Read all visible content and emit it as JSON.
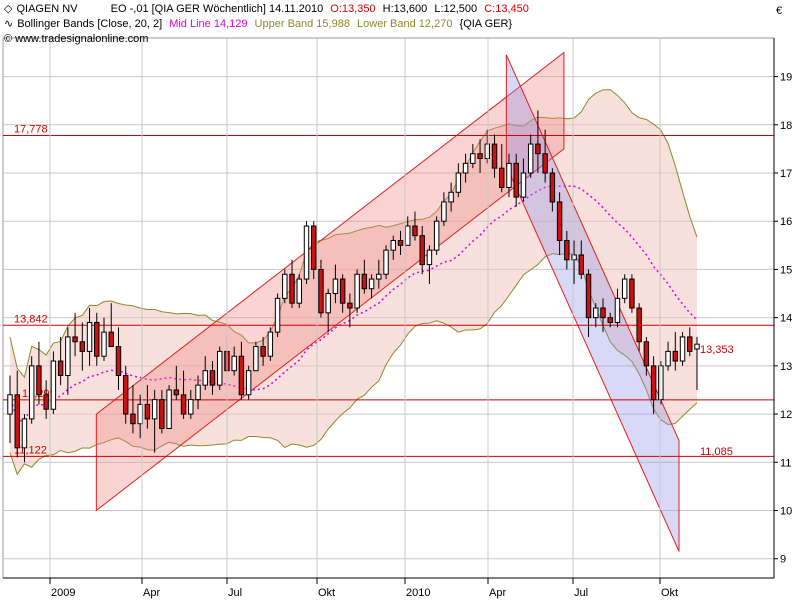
{
  "header": {
    "symbol": "QIAGEN NV",
    "instrument": "EO -,01 [QIA GER  Wöchentlich] 14.11.2010",
    "open": "O:13,350",
    "high": "H:13,600",
    "low": "L:12,500",
    "close": "C:13,450",
    "indicator": "Bollinger Bands [Close, 20, 2]",
    "mid": "Mid Line 14,129",
    "upper": "Upper Band 15,988",
    "lower": "Lower Band 12,270",
    "indicator_source": "{QIA GER}",
    "source": "© www.tradesignalonline.com"
  },
  "colors": {
    "up": "#ffffff",
    "down": "#cc1111",
    "level_line": "#d00000",
    "band_fill": "#f2c6c0",
    "band_line": "#8a8a2a",
    "mid_line": "#e000e0",
    "up_channel": "#f08080",
    "down_channel": "#9090e8"
  },
  "chart_data": {
    "type": "candlestick",
    "title": "QIAGEN NV",
    "currency_label": "€",
    "y_ticks": [
      9,
      10,
      11,
      12,
      13,
      14,
      15,
      16,
      17,
      18,
      19
    ],
    "ylim": [
      8.6,
      19.8
    ],
    "x_axis_labels": [
      {
        "label": "2009",
        "date": "2009-01"
      },
      {
        "label": "Apr",
        "date": "2009-04"
      },
      {
        "label": "Jul",
        "date": "2009-07"
      },
      {
        "label": "Okt",
        "date": "2009-10"
      },
      {
        "label": "2010",
        "date": "2010-01"
      },
      {
        "label": "Apr",
        "date": "2010-04"
      },
      {
        "label": "Jul",
        "date": "2010-07"
      },
      {
        "label": "Okt",
        "date": "2010-10"
      },
      {
        "label": "Okt",
        "date": "2010-11"
      }
    ],
    "horizontal_levels": [
      {
        "value": 17.778,
        "label": "17,778"
      },
      {
        "value": 13.842,
        "label": "13,842"
      },
      {
        "value": 12.295,
        "label": "12,295"
      },
      {
        "value": 11.122,
        "label": "11,122"
      },
      {
        "value": 11.085,
        "label": "11,085"
      }
    ],
    "last_price_label": "13,353",
    "candles": [
      [
        12.0,
        12.8,
        11.4,
        12.4
      ],
      [
        12.4,
        12.9,
        11.1,
        11.3
      ],
      [
        11.3,
        12.0,
        11.0,
        11.9
      ],
      [
        11.9,
        13.2,
        11.8,
        13.0
      ],
      [
        13.0,
        13.5,
        12.2,
        12.4
      ],
      [
        12.4,
        12.7,
        11.9,
        12.1
      ],
      [
        12.1,
        13.3,
        12.0,
        13.1
      ],
      [
        13.1,
        13.6,
        12.6,
        12.8
      ],
      [
        12.8,
        13.8,
        12.4,
        13.6
      ],
      [
        13.6,
        14.1,
        13.2,
        13.5
      ],
      [
        13.5,
        13.9,
        12.9,
        13.3
      ],
      [
        13.3,
        14.2,
        13.0,
        13.9
      ],
      [
        13.9,
        14.1,
        13.0,
        13.2
      ],
      [
        13.2,
        14.0,
        13.1,
        13.7
      ],
      [
        13.7,
        14.3,
        13.5,
        13.4
      ],
      [
        13.4,
        13.8,
        12.5,
        12.8
      ],
      [
        12.8,
        13.0,
        11.8,
        12.0
      ],
      [
        12.0,
        12.6,
        11.6,
        11.8
      ],
      [
        11.8,
        12.4,
        11.5,
        12.2
      ],
      [
        12.2,
        12.6,
        11.7,
        11.9
      ],
      [
        11.9,
        12.5,
        11.2,
        12.3
      ],
      [
        12.3,
        12.5,
        11.6,
        11.7
      ],
      [
        11.7,
        12.6,
        11.7,
        12.5
      ],
      [
        12.5,
        13.0,
        12.3,
        12.4
      ],
      [
        12.4,
        12.9,
        11.9,
        12.0
      ],
      [
        12.0,
        12.5,
        11.9,
        12.3
      ],
      [
        12.3,
        12.8,
        12.1,
        12.6
      ],
      [
        12.6,
        13.2,
        12.5,
        12.9
      ],
      [
        12.9,
        13.1,
        12.4,
        12.6
      ],
      [
        12.6,
        13.4,
        12.5,
        13.3
      ],
      [
        13.3,
        13.6,
        12.8,
        12.9
      ],
      [
        12.9,
        13.4,
        12.8,
        13.2
      ],
      [
        13.2,
        13.5,
        12.3,
        12.4
      ],
      [
        12.4,
        13.0,
        12.3,
        12.9
      ],
      [
        12.9,
        13.5,
        12.9,
        13.4
      ],
      [
        13.4,
        13.6,
        13.0,
        13.2
      ],
      [
        13.2,
        13.8,
        13.1,
        13.7
      ],
      [
        13.7,
        14.5,
        13.6,
        14.4
      ],
      [
        14.4,
        15.0,
        14.3,
        14.9
      ],
      [
        14.9,
        15.2,
        14.2,
        14.3
      ],
      [
        14.3,
        14.9,
        14.2,
        14.8
      ],
      [
        14.8,
        16.0,
        14.7,
        15.9
      ],
      [
        15.9,
        16.0,
        14.8,
        15.0
      ],
      [
        15.0,
        15.2,
        14.0,
        14.1
      ],
      [
        14.1,
        14.6,
        13.7,
        14.5
      ],
      [
        14.5,
        15.1,
        14.3,
        14.8
      ],
      [
        14.8,
        14.9,
        14.1,
        14.3
      ],
      [
        14.3,
        14.5,
        13.8,
        14.2
      ],
      [
        14.2,
        15.0,
        14.1,
        14.9
      ],
      [
        14.9,
        15.2,
        14.5,
        14.6
      ],
      [
        14.6,
        14.9,
        14.4,
        14.8
      ],
      [
        14.8,
        15.2,
        14.6,
        14.9
      ],
      [
        14.9,
        15.5,
        14.8,
        15.4
      ],
      [
        15.4,
        15.7,
        15.2,
        15.6
      ],
      [
        15.6,
        15.8,
        15.3,
        15.5
      ],
      [
        15.5,
        16.1,
        15.5,
        15.9
      ],
      [
        15.9,
        16.2,
        15.6,
        15.7
      ],
      [
        15.7,
        15.9,
        14.9,
        15.1
      ],
      [
        15.1,
        15.5,
        14.7,
        15.4
      ],
      [
        15.4,
        16.1,
        15.3,
        16.0
      ],
      [
        16.0,
        16.6,
        15.9,
        16.4
      ],
      [
        16.4,
        16.8,
        16.2,
        16.6
      ],
      [
        16.6,
        17.2,
        16.5,
        17.0
      ],
      [
        17.0,
        17.4,
        16.8,
        17.2
      ],
      [
        17.2,
        17.6,
        17.1,
        17.4
      ],
      [
        17.4,
        17.7,
        17.0,
        17.3
      ],
      [
        17.3,
        17.9,
        17.2,
        17.6
      ],
      [
        17.6,
        17.8,
        16.9,
        17.1
      ],
      [
        17.1,
        17.6,
        16.6,
        16.7
      ],
      [
        16.7,
        17.4,
        16.5,
        17.2
      ],
      [
        17.2,
        17.4,
        16.3,
        16.5
      ],
      [
        16.5,
        17.3,
        16.4,
        17.0
      ],
      [
        17.0,
        17.8,
        16.9,
        17.6
      ],
      [
        17.6,
        18.3,
        17.0,
        17.4
      ],
      [
        17.4,
        17.9,
        16.8,
        17.0
      ],
      [
        17.0,
        17.1,
        16.2,
        16.4
      ],
      [
        16.4,
        16.6,
        15.3,
        15.6
      ],
      [
        15.6,
        15.8,
        15.0,
        15.2
      ],
      [
        15.2,
        15.6,
        14.7,
        15.3
      ],
      [
        15.3,
        15.6,
        14.8,
        14.9
      ],
      [
        14.9,
        15.0,
        13.6,
        14.0
      ],
      [
        14.0,
        14.3,
        13.8,
        14.2
      ],
      [
        14.2,
        14.4,
        13.7,
        14.0
      ],
      [
        14.0,
        14.1,
        13.8,
        13.9
      ],
      [
        13.9,
        14.6,
        13.8,
        14.4
      ],
      [
        14.4,
        14.9,
        14.3,
        14.8
      ],
      [
        14.8,
        14.9,
        14.1,
        14.2
      ],
      [
        14.2,
        14.3,
        13.3,
        13.5
      ],
      [
        13.5,
        13.6,
        12.8,
        13.0
      ],
      [
        13.0,
        13.2,
        12.0,
        12.3
      ],
      [
        12.3,
        13.1,
        12.2,
        13.0
      ],
      [
        13.0,
        13.5,
        12.9,
        13.3
      ],
      [
        13.3,
        13.7,
        12.9,
        13.1
      ],
      [
        13.1,
        13.7,
        13.0,
        13.6
      ],
      [
        13.6,
        13.8,
        13.2,
        13.3
      ],
      [
        13.35,
        13.6,
        12.5,
        13.45
      ]
    ],
    "bollinger": {
      "period": 20,
      "stddev": 2,
      "mid_last": 14.129,
      "upper_last": 15.988,
      "lower_last": 12.27
    },
    "channels": [
      {
        "name": "up",
        "from": [
          0.12,
          11.0
        ],
        "to": [
          0.77,
          18.5
        ],
        "width": 2.0
      },
      {
        "name": "down",
        "from": [
          0.69,
          18.3
        ],
        "to": [
          0.93,
          10.3
        ],
        "width": 2.3
      }
    ]
  }
}
